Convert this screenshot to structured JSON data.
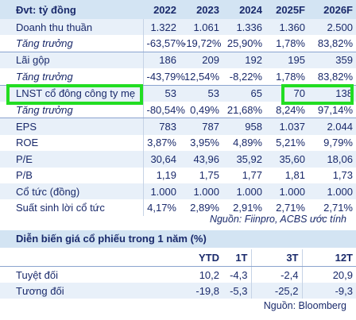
{
  "table1": {
    "unit_label": "Đvt: tỷ đồng",
    "years": [
      "2022",
      "2023",
      "2024",
      "2025F",
      "2026F"
    ],
    "rows": [
      {
        "label": "Doanh thu thuần",
        "values": [
          "1.322",
          "1.061",
          "1.336",
          "1.360",
          "2.500"
        ],
        "italic": false
      },
      {
        "label": "Tăng trưởng",
        "values": [
          "-63,57%",
          "-19,72%",
          "25,90%",
          "1,78%",
          "83,82%"
        ],
        "italic": true
      },
      {
        "label": "Lãi gộp",
        "values": [
          "186",
          "209",
          "192",
          "195",
          "359"
        ],
        "italic": false
      },
      {
        "label": "Tăng trưởng",
        "values": [
          "-43,79%",
          "12,54%",
          "-8,22%",
          "1,78%",
          "83,82%"
        ],
        "italic": true
      },
      {
        "label": "LNST cổ đông công ty mẹ",
        "values": [
          "53",
          "53",
          "65",
          "70",
          "138"
        ],
        "italic": false
      },
      {
        "label": "Tăng trưởng",
        "values": [
          "-80,54%",
          "0,49%",
          "21,68%",
          "8,24%",
          "97,14%"
        ],
        "italic": true
      },
      {
        "label": "EPS",
        "values": [
          "783",
          "787",
          "958",
          "1.037",
          "2.044"
        ],
        "italic": false
      },
      {
        "label": "ROE",
        "values": [
          "3,87%",
          "3,95%",
          "4,89%",
          "5,21%",
          "9,79%"
        ],
        "italic": false
      },
      {
        "label": "P/E",
        "values": [
          "30,64",
          "43,96",
          "35,92",
          "35,60",
          "18,06"
        ],
        "italic": false
      },
      {
        "label": "P/B",
        "values": [
          "1,19",
          "1,75",
          "1,77",
          "1,81",
          "1,73"
        ],
        "italic": false
      },
      {
        "label": "Cổ tức (đồng)",
        "values": [
          "1.000",
          "1.000",
          "1.000",
          "1.000",
          "1.000"
        ],
        "italic": false
      },
      {
        "label": "Suất sinh lời cổ tức",
        "values": [
          "4,17%",
          "2,89%",
          "2,91%",
          "2,71%",
          "2,71%"
        ],
        "italic": false
      }
    ],
    "source": "Nguồn: Fiinpro, ACBS ước tính"
  },
  "table2": {
    "title": "Diễn biến giá cổ phiếu trong 1 năm  (%)",
    "headers": [
      "YTD",
      "1T",
      "3T",
      "12T"
    ],
    "rows": [
      {
        "label": "Tuyệt đối",
        "values": [
          "10,2",
          "-4,3",
          "-2,4",
          "20,9"
        ]
      },
      {
        "label": "Tương đối",
        "values": [
          "-19,8",
          "-5,3",
          "-25,2",
          "-9,3"
        ]
      }
    ],
    "source": "Nguồn: Bloomberg"
  },
  "colors": {
    "text": "#1a2a6b",
    "header_bg": "#d3e4f3",
    "band_bg": "#e8f0f9",
    "highlight": "#22dd22"
  }
}
